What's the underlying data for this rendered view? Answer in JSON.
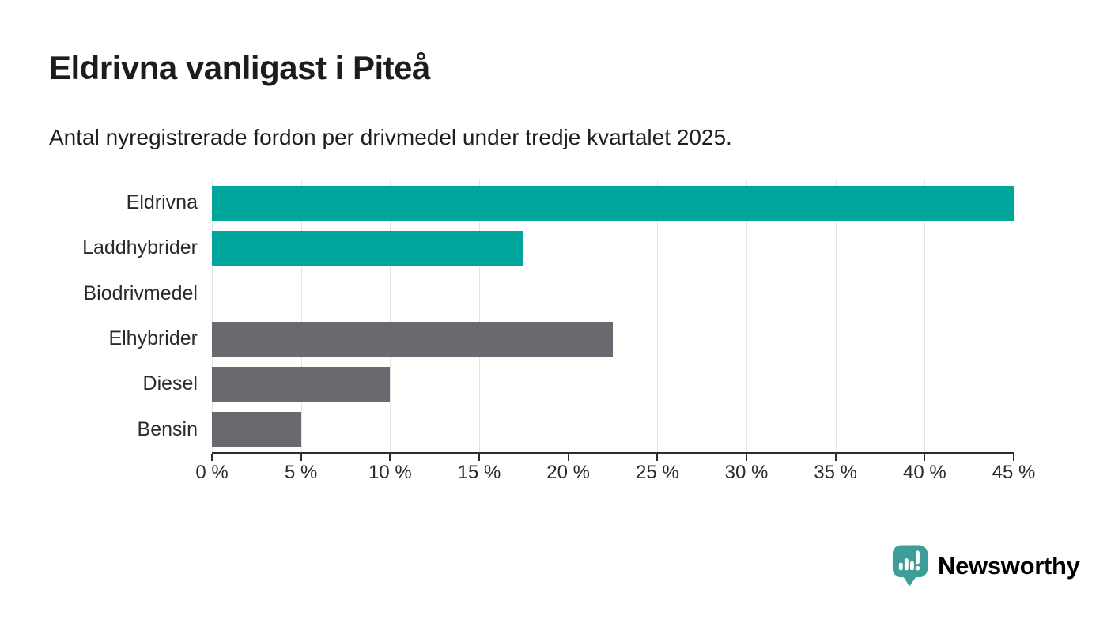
{
  "header": {
    "title": "Eldrivna vanligast i Piteå",
    "subtitle": "Antal nyregistrerade fordon per drivmedel under tredje kvartalet 2025."
  },
  "chart_data": {
    "type": "bar",
    "orientation": "horizontal",
    "title": "Eldrivna vanligast i Piteå",
    "subtitle": "Antal nyregistrerade fordon per drivmedel under tredje kvartalet 2025.",
    "categories": [
      "Eldrivna",
      "Laddhybrider",
      "Biodrivmedel",
      "Elhybrider",
      "Diesel",
      "Bensin"
    ],
    "values": [
      45,
      17.5,
      0,
      22.5,
      10,
      5
    ],
    "unit": "%",
    "bar_colors": [
      "#00a59b",
      "#00a59b",
      "#6b6870",
      "#6b6870",
      "#6b6870",
      "#6b6870"
    ],
    "xlim": [
      0,
      45
    ],
    "x_tick_values": [
      0,
      5,
      10,
      15,
      20,
      25,
      30,
      35,
      40,
      45
    ],
    "x_tick_labels": [
      "0 %",
      "5 %",
      "10 %",
      "15 %",
      "20 %",
      "25 %",
      "30 %",
      "35 %",
      "40 %",
      "45 %"
    ],
    "xlabel": "",
    "ylabel": "",
    "grid": true,
    "legend": false
  },
  "footer": {
    "brand": "Newsworthy"
  },
  "colors": {
    "bar_teal": "#00a59b",
    "bar_gray": "#6b6870",
    "logo_teal": "#3d9d97",
    "axis": "#2d2d2d",
    "gridline": "#e3e3e3",
    "text": "#1d1d1d"
  }
}
